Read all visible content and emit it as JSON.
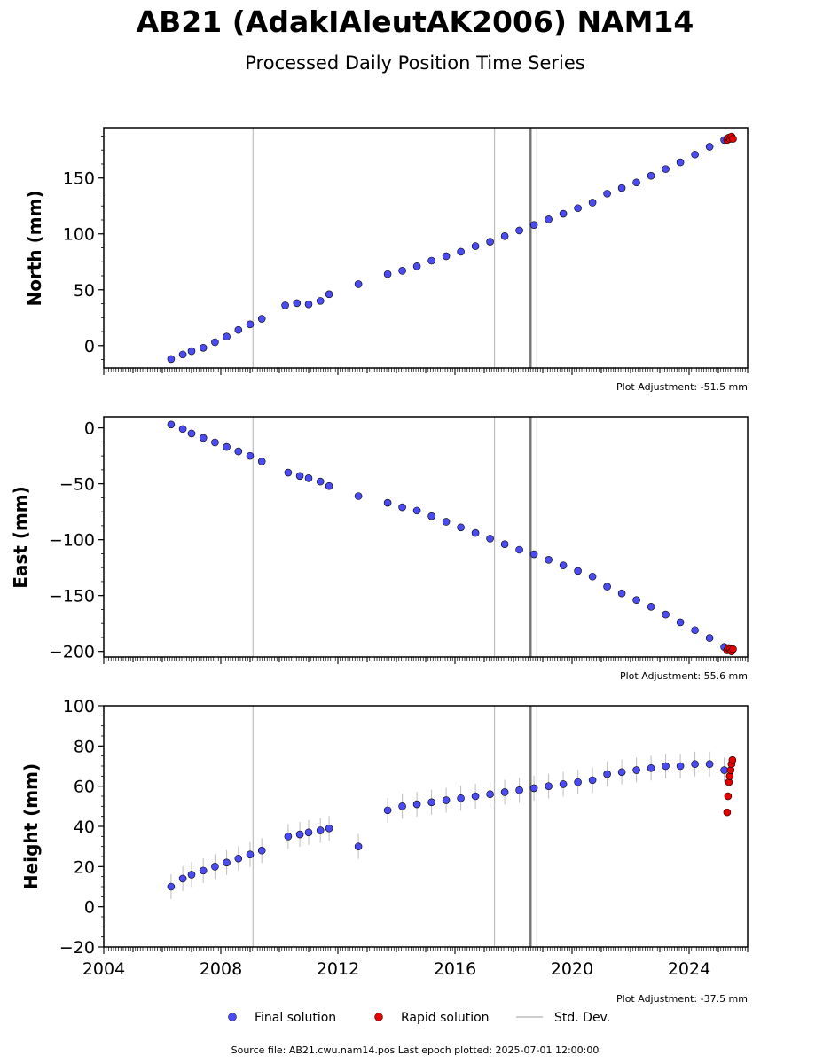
{
  "title": "AB21 (AdakIAleutAK2006) NAM14",
  "subtitle": "Processed Daily Position Time Series",
  "legend": {
    "final": "Final solution",
    "rapid": "Rapid solution",
    "std": "Std. Dev."
  },
  "footer": "Source file: AB21.cwu.nam14.pos  Last epoch plotted: 2025-07-01 12:00:00",
  "colors": {
    "final_fill": "#4b4bf2",
    "final_edge": "#000000",
    "rapid_fill": "#e60000",
    "std_line": "#bdbdbd"
  },
  "chart_data": [
    {
      "type": "scatter",
      "ylabel": "North (mm)",
      "xlim": [
        2004,
        2026
      ],
      "ylim": [
        -20,
        195
      ],
      "yticks": [
        "0",
        "50",
        "100",
        "150"
      ],
      "xticks": [],
      "adjustment": "Plot Adjustment: -51.5 mm",
      "series": [
        {
          "name": "Final solution",
          "x": [
            2006.3,
            2006.7,
            2007.0,
            2007.4,
            2007.8,
            2008.2,
            2008.6,
            2009.0,
            2009.4,
            2010.2,
            2010.6,
            2011.0,
            2011.4,
            2011.7,
            2012.7,
            2013.7,
            2014.2,
            2014.7,
            2015.2,
            2015.7,
            2016.2,
            2016.7,
            2017.2,
            2017.7,
            2018.2,
            2018.7,
            2019.2,
            2019.7,
            2020.2,
            2020.7,
            2021.2,
            2021.7,
            2022.2,
            2022.7,
            2023.2,
            2023.7,
            2024.2,
            2024.7,
            2025.2
          ],
          "y": [
            -12,
            -8,
            -5,
            -2,
            3,
            8,
            14,
            19,
            24,
            36,
            38,
            37,
            40,
            46,
            55,
            64,
            67,
            71,
            76,
            80,
            84,
            89,
            93,
            98,
            103,
            108,
            113,
            118,
            123,
            128,
            136,
            141,
            146,
            152,
            158,
            164,
            171,
            178,
            184
          ]
        },
        {
          "name": "Rapid solution",
          "x": [
            2025.3,
            2025.35,
            2025.4,
            2025.45,
            2025.5
          ],
          "y": [
            184,
            186,
            185,
            187,
            185
          ]
        }
      ],
      "std_lines_x": [
        2009.1,
        2017.35,
        2018.55,
        2018.6,
        2018.8
      ]
    },
    {
      "type": "scatter",
      "ylabel": "East (mm)",
      "xlim": [
        2004,
        2026
      ],
      "ylim": [
        -205,
        10
      ],
      "yticks": [
        "0",
        "−50",
        "−100",
        "−150",
        "−200"
      ],
      "xticks": [],
      "adjustment": "Plot Adjustment: 55.6 mm",
      "series": [
        {
          "name": "Final solution",
          "x": [
            2006.3,
            2006.7,
            2007.0,
            2007.4,
            2007.8,
            2008.2,
            2008.6,
            2009.0,
            2009.4,
            2010.3,
            2010.7,
            2011.0,
            2011.4,
            2011.7,
            2012.7,
            2013.7,
            2014.2,
            2014.7,
            2015.2,
            2015.7,
            2016.2,
            2016.7,
            2017.2,
            2017.7,
            2018.2,
            2018.7,
            2019.2,
            2019.7,
            2020.2,
            2020.7,
            2021.2,
            2021.7,
            2022.2,
            2022.7,
            2023.2,
            2023.7,
            2024.2,
            2024.7,
            2025.2
          ],
          "y": [
            3,
            -1,
            -5,
            -9,
            -13,
            -17,
            -21,
            -25,
            -30,
            -40,
            -43,
            -45,
            -48,
            -52,
            -61,
            -67,
            -71,
            -74,
            -79,
            -84,
            -89,
            -94,
            -99,
            -104,
            -109,
            -113,
            -118,
            -123,
            -128,
            -133,
            -142,
            -148,
            -154,
            -160,
            -167,
            -174,
            -181,
            -188,
            -196
          ]
        },
        {
          "name": "Rapid solution",
          "x": [
            2025.3,
            2025.35,
            2025.4,
            2025.45,
            2025.5
          ],
          "y": [
            -199,
            -197,
            -198,
            -200,
            -198
          ]
        }
      ],
      "std_lines_x": [
        2009.1,
        2017.35,
        2018.55,
        2018.6,
        2018.8
      ]
    },
    {
      "type": "scatter",
      "ylabel": "Height (mm)",
      "xlim": [
        2004,
        2026
      ],
      "ylim": [
        -20,
        100
      ],
      "yticks": [
        "−20",
        "0",
        "20",
        "40",
        "60",
        "80",
        "100"
      ],
      "xticks": [
        "2004",
        "2008",
        "2012",
        "2016",
        "2020",
        "2024"
      ],
      "adjustment": "Plot Adjustment: -37.5 mm",
      "series": [
        {
          "name": "Final solution",
          "x": [
            2006.3,
            2006.7,
            2007.0,
            2007.4,
            2007.8,
            2008.2,
            2008.6,
            2009.0,
            2009.4,
            2010.3,
            2010.7,
            2011.0,
            2011.4,
            2011.7,
            2012.7,
            2013.7,
            2014.2,
            2014.7,
            2015.2,
            2015.7,
            2016.2,
            2016.7,
            2017.2,
            2017.7,
            2018.2,
            2018.7,
            2019.2,
            2019.7,
            2020.2,
            2020.7,
            2021.2,
            2021.7,
            2022.2,
            2022.7,
            2023.2,
            2023.7,
            2024.2,
            2024.7,
            2025.2
          ],
          "y": [
            10,
            14,
            16,
            18,
            20,
            22,
            24,
            26,
            28,
            35,
            36,
            37,
            38,
            39,
            30,
            48,
            50,
            51,
            52,
            53,
            54,
            55,
            56,
            57,
            58,
            59,
            60,
            61,
            62,
            63,
            66,
            67,
            68,
            69,
            70,
            70,
            71,
            71,
            68
          ]
        },
        {
          "name": "Rapid solution",
          "x": [
            2025.3,
            2025.33,
            2025.36,
            2025.39,
            2025.42,
            2025.45,
            2025.48
          ],
          "y": [
            47,
            55,
            62,
            65,
            68,
            71,
            73
          ]
        }
      ],
      "std_lines_x": [
        2009.1,
        2017.35,
        2018.55,
        2018.6,
        2018.8
      ]
    }
  ]
}
